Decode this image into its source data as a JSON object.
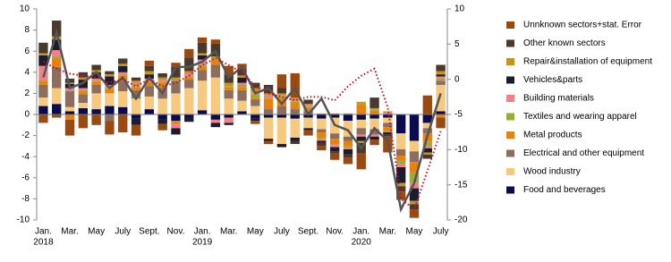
{
  "chart_data": {
    "type": "stacked-bar",
    "categories": [
      "Jan.",
      null,
      "Mar.",
      null,
      "May",
      null,
      "July",
      null,
      "Sept.",
      null,
      "Nov.",
      null,
      "Jan.",
      null,
      "Mar.",
      null,
      "May",
      null,
      "July",
      null,
      "Sept.",
      null,
      "Nov.",
      null,
      "Jan.",
      null,
      "Mar.",
      null,
      "May",
      null,
      "July"
    ],
    "years": [
      "2018",
      "2019",
      "2020"
    ],
    "ylim": [
      -10,
      10
    ],
    "yticks": [
      -10,
      -8,
      -6,
      -4,
      -2,
      0,
      2,
      4,
      6,
      8,
      10
    ],
    "y2lim": [
      -20,
      10
    ],
    "y2ticks": [
      -20,
      -15,
      -10,
      -5,
      0,
      5,
      10
    ],
    "series": [
      {
        "name": "Food and beverages",
        "color": "#0b0b4f",
        "values": [
          0.8,
          1.0,
          0.3,
          0.6,
          0.5,
          0.8,
          0.7,
          -0.4,
          0.5,
          -0.5,
          -0.6,
          -0.3,
          0.4,
          -0.5,
          -0.3,
          0.3,
          -0.4,
          -0.3,
          -0.3,
          -0.4,
          -0.3,
          -0.4,
          -0.3,
          -0.6,
          -0.5,
          -0.4,
          -0.3,
          -1.8,
          -2.5,
          -0.8,
          0.3
        ]
      },
      {
        "name": "Wood industry",
        "color": "#f6c97e",
        "values": [
          0.8,
          1.5,
          0.4,
          0.5,
          1.5,
          1.2,
          1.5,
          1.5,
          1.2,
          1.5,
          2.0,
          2.5,
          2.8,
          3.5,
          1.5,
          1.0,
          0.8,
          -2.0,
          -2.5,
          -1.8,
          -1.0,
          -1.0,
          -1.5,
          -1.5,
          -0.8,
          -1.0,
          -0.5,
          -1.5,
          -1.0,
          -0.5,
          2.5
        ]
      },
      {
        "name": "Electrical and other equipment",
        "color": "#8c6d5e",
        "values": [
          1.2,
          2.0,
          1.5,
          0.8,
          0.8,
          -0.6,
          1.0,
          0.8,
          1.0,
          1.0,
          1.2,
          0.8,
          1.0,
          1.2,
          0.8,
          1.0,
          0.6,
          0.5,
          0.8,
          0.5,
          0.3,
          -0.3,
          -0.5,
          -0.4,
          -0.6,
          -0.5,
          -0.4,
          -0.6,
          -1.0,
          -0.5,
          0.4
        ]
      },
      {
        "name": "Metal products",
        "color": "#e8820e",
        "values": [
          0.4,
          0.8,
          -0.5,
          0.3,
          0.3,
          0.4,
          0.5,
          0.3,
          0.4,
          0.5,
          -0.3,
          0.2,
          0.3,
          0.5,
          0.3,
          0.3,
          0.2,
          1.0,
          0.8,
          0.6,
          0.3,
          -0.5,
          -0.5,
          -0.5,
          1.0,
          0.4,
          -0.4,
          -0.5,
          -1.0,
          -0.8,
          -0.3
        ]
      },
      {
        "name": "Textiles and wearing apparel",
        "color": "#9aab3c",
        "values": [
          0.1,
          0.2,
          0.1,
          0.1,
          0.1,
          0.1,
          0.1,
          0.1,
          0.1,
          0.1,
          0.1,
          0.1,
          0.2,
          0.1,
          0.1,
          0.2,
          0.3,
          0.1,
          0.1,
          0.1,
          0.1,
          -0.1,
          -0.1,
          -0.2,
          0.2,
          0.1,
          -0.1,
          -0.3,
          -1.0,
          -0.4,
          0.2
        ]
      },
      {
        "name": "Building materials",
        "color": "#f0808a",
        "values": [
          1.3,
          0.6,
          0.2,
          0.2,
          0.2,
          0.3,
          0.2,
          0.3,
          0.2,
          0.2,
          -0.4,
          0.3,
          0.5,
          -0.3,
          -0.5,
          0.2,
          0.2,
          0.2,
          0.1,
          0.2,
          0.2,
          -0.2,
          -0.2,
          -0.1,
          -0.2,
          -0.2,
          0.2,
          -0.3,
          -0.5,
          -0.2,
          0.2
        ]
      },
      {
        "name": "Vehicles&parts",
        "color": "#1c1c30",
        "values": [
          1.0,
          1.0,
          0.4,
          0.8,
          0.6,
          0.8,
          0.6,
          -0.6,
          0.4,
          -0.4,
          -0.6,
          -0.4,
          0.4,
          -0.4,
          -0.2,
          0.5,
          -0.2,
          -0.2,
          -0.3,
          -0.3,
          -0.2,
          -0.2,
          -0.4,
          -0.5,
          -0.4,
          -0.3,
          -0.2,
          -1.5,
          -1.2,
          -0.4,
          0.2
        ]
      },
      {
        "name": "Repair&installation of equipment",
        "color": "#c9921c",
        "values": [
          0.2,
          0.3,
          0.1,
          0.2,
          0.2,
          0.2,
          0.2,
          0.2,
          0.3,
          0.2,
          0.2,
          0.2,
          0.2,
          0.2,
          0.3,
          0.2,
          0.4,
          0.2,
          0.2,
          0.2,
          0.1,
          0.1,
          0.1,
          0.1,
          -0.2,
          0.1,
          0.1,
          -0.3,
          -0.3,
          -0.2,
          0.3
        ]
      },
      {
        "name": "Other known sectors",
        "color": "#4a3a2e",
        "values": [
          1.0,
          1.5,
          0.4,
          0.5,
          0.5,
          0.3,
          0.5,
          0.3,
          0.5,
          0.4,
          1.0,
          1.3,
          1.0,
          1.2,
          0.8,
          0.6,
          0.5,
          0.8,
          0.5,
          -0.3,
          0.4,
          -0.3,
          -0.2,
          -0.3,
          -1.0,
          1.0,
          -0.2,
          -0.5,
          -0.5,
          -0.4,
          0.6
        ]
      },
      {
        "name": "Unnknown sectors+stat. Error",
        "color": "#9a4a10",
        "values": [
          -0.8,
          -0.3,
          -1.5,
          -1.3,
          -1.0,
          -1.3,
          -1.7,
          -1.0,
          0.5,
          -0.6,
          0.4,
          0.8,
          0.5,
          0.4,
          0.8,
          0.5,
          -0.3,
          -0.3,
          1.3,
          2.3,
          -0.5,
          -0.4,
          -0.6,
          -0.6,
          -1.5,
          -0.5,
          -1.5,
          -0.8,
          -0.8,
          1.8,
          -1.0
        ]
      }
    ],
    "lines": [
      {
        "color": "#555555",
        "style": "solid",
        "values": [
          3.5,
          7.8,
          2.5,
          3,
          4,
          2.5,
          3.5,
          1.5,
          3.5,
          2,
          4.5,
          4.5,
          5,
          6,
          3.5,
          4.5,
          2,
          2.5,
          1,
          2.5,
          0,
          1.5,
          -1,
          -1.5,
          -3.2,
          -1.3,
          -2.5,
          -9,
          -6.5,
          -2,
          2
        ]
      },
      {
        "color": "#c0102a",
        "style": "dotted",
        "axis": "y2",
        "values": [
          2.5,
          1.5,
          0.8,
          0.5,
          0.3,
          -0.5,
          0,
          -1,
          0,
          -1,
          -0.5,
          0.5,
          2,
          3,
          2,
          1,
          -1,
          -2,
          -2.5,
          -3,
          -2.5,
          -2.5,
          -3,
          -1,
          0.5,
          1.5,
          -4,
          -17,
          -18.5,
          -13,
          -7.4
        ]
      }
    ]
  }
}
